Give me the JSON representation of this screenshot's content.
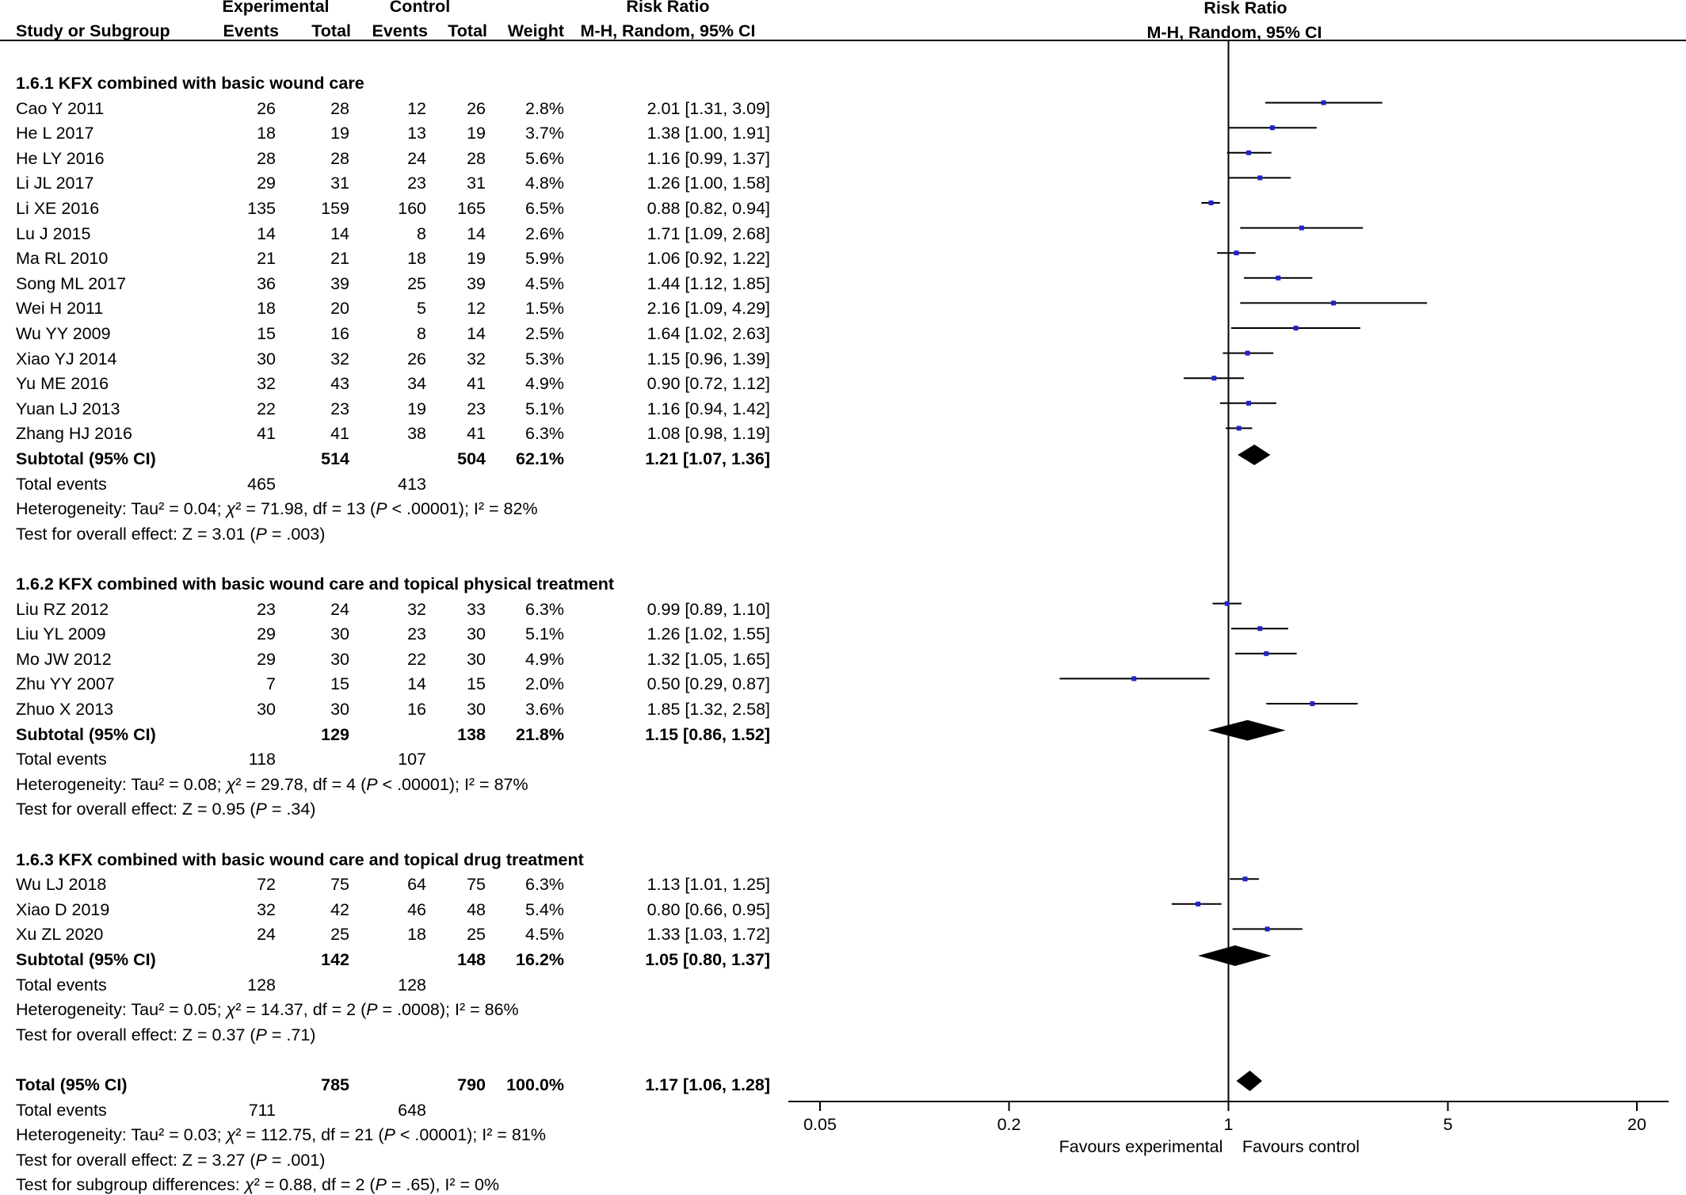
{
  "headers": {
    "group_experimental": "Experimental",
    "group_control": "Control",
    "study": "Study or Subgroup",
    "exp_events": "Events",
    "exp_total": "Total",
    "ctl_events": "Events",
    "ctl_total": "Total",
    "weight": "Weight",
    "rr_title": "Risk Ratio",
    "rr_sub": "M-H, Random, 95% CI",
    "plot_title": "Risk Ratio",
    "plot_sub": "M-H, Random, 95% CI"
  },
  "rows": [
    {
      "kind": "subgroup_title",
      "label": "1.6.1 KFX combined with basic wound care"
    },
    {
      "kind": "study",
      "study": "Cao Y 2011",
      "exp_events": "26",
      "exp_total": "28",
      "ctl_events": "12",
      "ctl_total": "26",
      "weight": "2.8%",
      "ci": "2.01 [1.31, 3.09]",
      "rr": 2.01,
      "lo": 1.31,
      "hi": 3.09
    },
    {
      "kind": "study",
      "study": "He L 2017",
      "exp_events": "18",
      "exp_total": "19",
      "ctl_events": "13",
      "ctl_total": "19",
      "weight": "3.7%",
      "ci": "1.38 [1.00, 1.91]",
      "rr": 1.38,
      "lo": 1.0,
      "hi": 1.91
    },
    {
      "kind": "study",
      "study": "He LY 2016",
      "exp_events": "28",
      "exp_total": "28",
      "ctl_events": "24",
      "ctl_total": "28",
      "weight": "5.6%",
      "ci": "1.16 [0.99, 1.37]",
      "rr": 1.16,
      "lo": 0.99,
      "hi": 1.37
    },
    {
      "kind": "study",
      "study": "Li JL 2017",
      "exp_events": "29",
      "exp_total": "31",
      "ctl_events": "23",
      "ctl_total": "31",
      "weight": "4.8%",
      "ci": "1.26 [1.00, 1.58]",
      "rr": 1.26,
      "lo": 1.0,
      "hi": 1.58
    },
    {
      "kind": "study",
      "study": "Li XE 2016",
      "exp_events": "135",
      "exp_total": "159",
      "ctl_events": "160",
      "ctl_total": "165",
      "weight": "6.5%",
      "ci": "0.88 [0.82, 0.94]",
      "rr": 0.88,
      "lo": 0.82,
      "hi": 0.94
    },
    {
      "kind": "study",
      "study": "Lu J 2015",
      "exp_events": "14",
      "exp_total": "14",
      "ctl_events": "8",
      "ctl_total": "14",
      "weight": "2.6%",
      "ci": "1.71 [1.09, 2.68]",
      "rr": 1.71,
      "lo": 1.09,
      "hi": 2.68
    },
    {
      "kind": "study",
      "study": "Ma RL 2010",
      "exp_events": "21",
      "exp_total": "21",
      "ctl_events": "18",
      "ctl_total": "19",
      "weight": "5.9%",
      "ci": "1.06 [0.92, 1.22]",
      "rr": 1.06,
      "lo": 0.92,
      "hi": 1.22
    },
    {
      "kind": "study",
      "study": "Song ML 2017",
      "exp_events": "36",
      "exp_total": "39",
      "ctl_events": "25",
      "ctl_total": "39",
      "weight": "4.5%",
      "ci": "1.44 [1.12, 1.85]",
      "rr": 1.44,
      "lo": 1.12,
      "hi": 1.85
    },
    {
      "kind": "study",
      "study": "Wei H 2011",
      "exp_events": "18",
      "exp_total": "20",
      "ctl_events": "5",
      "ctl_total": "12",
      "weight": "1.5%",
      "ci": "2.16 [1.09, 4.29]",
      "rr": 2.16,
      "lo": 1.09,
      "hi": 4.29
    },
    {
      "kind": "study",
      "study": "Wu YY 2009",
      "exp_events": "15",
      "exp_total": "16",
      "ctl_events": "8",
      "ctl_total": "14",
      "weight": "2.5%",
      "ci": "1.64 [1.02, 2.63]",
      "rr": 1.64,
      "lo": 1.02,
      "hi": 2.63
    },
    {
      "kind": "study",
      "study": "Xiao YJ  2014",
      "exp_events": "30",
      "exp_total": "32",
      "ctl_events": "26",
      "ctl_total": "32",
      "weight": "5.3%",
      "ci": "1.15 [0.96, 1.39]",
      "rr": 1.15,
      "lo": 0.96,
      "hi": 1.39
    },
    {
      "kind": "study",
      "study": "Yu ME 2016",
      "exp_events": "32",
      "exp_total": "43",
      "ctl_events": "34",
      "ctl_total": "41",
      "weight": "4.9%",
      "ci": "0.90 [0.72, 1.12]",
      "rr": 0.9,
      "lo": 0.72,
      "hi": 1.12
    },
    {
      "kind": "study",
      "study": "Yuan LJ 2013",
      "exp_events": "22",
      "exp_total": "23",
      "ctl_events": "19",
      "ctl_total": "23",
      "weight": "5.1%",
      "ci": "1.16 [0.94, 1.42]",
      "rr": 1.16,
      "lo": 0.94,
      "hi": 1.42
    },
    {
      "kind": "study",
      "study": "Zhang HJ 2016",
      "exp_events": "41",
      "exp_total": "41",
      "ctl_events": "38",
      "ctl_total": "41",
      "weight": "6.3%",
      "ci": "1.08 [0.98, 1.19]",
      "rr": 1.08,
      "lo": 0.98,
      "hi": 1.19
    },
    {
      "kind": "subtotal",
      "study": "Subtotal (95% CI)",
      "exp_total": "514",
      "ctl_total": "504",
      "weight": "62.1%",
      "ci": "1.21 [1.07, 1.36]",
      "rr": 1.21,
      "lo": 1.07,
      "hi": 1.36
    },
    {
      "kind": "events",
      "study": "Total events",
      "exp_events": "465",
      "ctl_events": "413"
    },
    {
      "kind": "note",
      "pre": "Heterogeneity: Tau² = 0.04; ",
      "chi": "χ",
      "post": "² = 71.98, df = 13 (",
      "p": "P",
      "post2": " < .00001); I² = 82%"
    },
    {
      "kind": "note",
      "pre": "Test for overall effect: Z = 3.01 (",
      "p": "P",
      "post2": " = .003)"
    },
    {
      "kind": "blank"
    },
    {
      "kind": "subgroup_title",
      "label": "1.6.2 KFX combined with basic wound care and topical physical treatment"
    },
    {
      "kind": "study",
      "study": "Liu RZ 2012",
      "exp_events": "23",
      "exp_total": "24",
      "ctl_events": "32",
      "ctl_total": "33",
      "weight": "6.3%",
      "ci": "0.99 [0.89, 1.10]",
      "rr": 0.99,
      "lo": 0.89,
      "hi": 1.1
    },
    {
      "kind": "study",
      "study": "Liu YL 2009",
      "exp_events": "29",
      "exp_total": "30",
      "ctl_events": "23",
      "ctl_total": "30",
      "weight": "5.1%",
      "ci": "1.26 [1.02, 1.55]",
      "rr": 1.26,
      "lo": 1.02,
      "hi": 1.55
    },
    {
      "kind": "study",
      "study": "Mo JW 2012",
      "exp_events": "29",
      "exp_total": "30",
      "ctl_events": "22",
      "ctl_total": "30",
      "weight": "4.9%",
      "ci": "1.32 [1.05, 1.65]",
      "rr": 1.32,
      "lo": 1.05,
      "hi": 1.65
    },
    {
      "kind": "study",
      "study": "Zhu YY 2007",
      "exp_events": "7",
      "exp_total": "15",
      "ctl_events": "14",
      "ctl_total": "15",
      "weight": "2.0%",
      "ci": "0.50 [0.29, 0.87]",
      "rr": 0.5,
      "lo": 0.29,
      "hi": 0.87
    },
    {
      "kind": "study",
      "study": "Zhuo X 2013",
      "exp_events": "30",
      "exp_total": "30",
      "ctl_events": "16",
      "ctl_total": "30",
      "weight": "3.6%",
      "ci": "1.85 [1.32, 2.58]",
      "rr": 1.85,
      "lo": 1.32,
      "hi": 2.58
    },
    {
      "kind": "subtotal",
      "study": "Subtotal (95% CI)",
      "exp_total": "129",
      "ctl_total": "138",
      "weight": "21.8%",
      "ci": "1.15 [0.86, 1.52]",
      "rr": 1.15,
      "lo": 0.86,
      "hi": 1.52
    },
    {
      "kind": "events",
      "study": "Total events",
      "exp_events": "118",
      "ctl_events": "107"
    },
    {
      "kind": "note",
      "pre": "Heterogeneity: Tau² = 0.08; ",
      "chi": "χ",
      "post": "² = 29.78, df = 4 (",
      "p": "P",
      "post2": " < .00001); I² = 87%"
    },
    {
      "kind": "note",
      "pre": "Test for overall effect: Z = 0.95 (",
      "p": "P",
      "post2": " = .34)"
    },
    {
      "kind": "blank"
    },
    {
      "kind": "subgroup_title",
      "label": "1.6.3 KFX combined with basic wound care and topical drug treatment"
    },
    {
      "kind": "study",
      "study": "Wu LJ 2018",
      "exp_events": "72",
      "exp_total": "75",
      "ctl_events": "64",
      "ctl_total": "75",
      "weight": "6.3%",
      "ci": "1.13 [1.01, 1.25]",
      "rr": 1.13,
      "lo": 1.01,
      "hi": 1.25
    },
    {
      "kind": "study",
      "study": "Xiao D 2019",
      "exp_events": "32",
      "exp_total": "42",
      "ctl_events": "46",
      "ctl_total": "48",
      "weight": "5.4%",
      "ci": "0.80 [0.66, 0.95]",
      "rr": 0.8,
      "lo": 0.66,
      "hi": 0.95
    },
    {
      "kind": "study",
      "study": "Xu ZL 2020",
      "exp_events": "24",
      "exp_total": "25",
      "ctl_events": "18",
      "ctl_total": "25",
      "weight": "4.5%",
      "ci": "1.33 [1.03, 1.72]",
      "rr": 1.33,
      "lo": 1.03,
      "hi": 1.72
    },
    {
      "kind": "subtotal",
      "study": "Subtotal (95% CI)",
      "exp_total": "142",
      "ctl_total": "148",
      "weight": "16.2%",
      "ci": "1.05 [0.80, 1.37]",
      "rr": 1.05,
      "lo": 0.8,
      "hi": 1.37
    },
    {
      "kind": "events",
      "study": "Total events",
      "exp_events": "128",
      "ctl_events": "128"
    },
    {
      "kind": "note",
      "pre": "Heterogeneity: Tau² = 0.05; ",
      "chi": "χ",
      "post": "² = 14.37, df = 2 (",
      "p": "P",
      "post2": " = .0008); I² = 86%"
    },
    {
      "kind": "note",
      "pre": "Test for overall effect: Z = 0.37 (",
      "p": "P",
      "post2": " = .71)"
    },
    {
      "kind": "blank"
    },
    {
      "kind": "total",
      "study": "Total (95% CI)",
      "exp_total": "785",
      "ctl_total": "790",
      "weight": "100.0%",
      "ci": "1.17 [1.06, 1.28]",
      "rr": 1.17,
      "lo": 1.06,
      "hi": 1.28
    },
    {
      "kind": "events",
      "study": "Total events",
      "exp_events": "711",
      "ctl_events": "648"
    },
    {
      "kind": "note",
      "pre": "Heterogeneity: Tau² = 0.03; ",
      "chi": "χ",
      "post": "² = 112.75, df = 21 (",
      "p": "P",
      "post2": " < .00001); I² = 81%"
    },
    {
      "kind": "note",
      "pre": "Test for overall effect: Z = 3.27 (",
      "p": "P",
      "post2": " = .001)"
    },
    {
      "kind": "note",
      "pre": "Test for subgroup differences: ",
      "chi": "χ",
      "post": "² = 0.88, df = 2 (",
      "p": "P",
      "post2": " = .65), I² = 0%"
    }
  ],
  "axis": {
    "ticks": [
      0.05,
      0.2,
      1,
      5,
      20
    ],
    "tick_labels": [
      "0.05",
      "0.2",
      "1",
      "5",
      "20"
    ],
    "favours_left": "Favours experimental",
    "favours_right": "Favours control"
  },
  "chart_data": {
    "type": "forest",
    "scale": "log",
    "xlim": [
      0.05,
      20
    ],
    "reference_line": 1,
    "marker_color": "#2323c8"
  }
}
